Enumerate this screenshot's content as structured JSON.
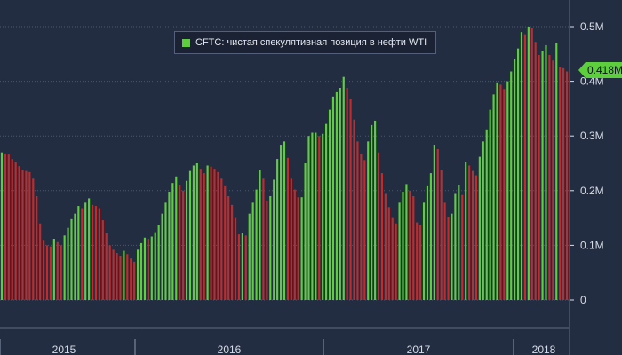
{
  "legend": {
    "label": "CFTC: чистая спекулятивная позиция в нефти WTI"
  },
  "last_value_tag": "0.418M",
  "colors": {
    "background": "#222d41",
    "rising": "#5ecf3c",
    "falling": "#c42a2a",
    "grid": "#4a566c",
    "axis_text": "#d8dde6"
  },
  "chart_data": {
    "type": "bar",
    "title": "",
    "xlabel": "",
    "ylabel": "",
    "ylim": [
      0,
      540000
    ],
    "yticks": [
      0,
      100000,
      200000,
      300000,
      400000,
      500000
    ],
    "ytick_labels": [
      "0",
      "0.1M",
      "0.2M",
      "0.3M",
      "0.4M",
      "0.5M"
    ],
    "x_period_labels": [
      "2015",
      "2016",
      "2017",
      "2018"
    ],
    "grid": true,
    "legend_position": "top-center",
    "bar_color_rule": "green if value rose vs previous week, red if fell",
    "series": [
      {
        "name": "CFTC: чистая спекулятивная позиция в нефти WTI",
        "values": [
          270000,
          268000,
          266000,
          258000,
          252000,
          245000,
          238000,
          236000,
          234000,
          222000,
          190000,
          140000,
          110000,
          100000,
          98000,
          112000,
          106000,
          100000,
          118000,
          132000,
          148000,
          158000,
          172000,
          168000,
          178000,
          186000,
          174000,
          172000,
          168000,
          146000,
          122000,
          100000,
          92000,
          86000,
          80000,
          90000,
          84000,
          76000,
          70000,
          92000,
          104000,
          114000,
          112000,
          116000,
          124000,
          138000,
          158000,
          178000,
          198000,
          214000,
          226000,
          210000,
          200000,
          218000,
          236000,
          246000,
          250000,
          240000,
          232000,
          246000,
          244000,
          240000,
          234000,
          222000,
          208000,
          190000,
          174000,
          150000,
          120000,
          122000,
          118000,
          158000,
          178000,
          202000,
          238000,
          222000,
          182000,
          190000,
          220000,
          258000,
          284000,
          290000,
          260000,
          222000,
          202000,
          188000,
          188000,
          250000,
          300000,
          306000,
          306000,
          300000,
          304000,
          322000,
          348000,
          372000,
          380000,
          388000,
          408000,
          388000,
          368000,
          330000,
          290000,
          268000,
          256000,
          290000,
          320000,
          328000,
          270000,
          232000,
          194000,
          170000,
          150000,
          140000,
          178000,
          198000,
          212000,
          200000,
          190000,
          142000,
          138000,
          178000,
          208000,
          232000,
          284000,
          276000,
          238000,
          178000,
          152000,
          158000,
          194000,
          210000,
          192000,
          252000,
          246000,
          236000,
          228000,
          262000,
          290000,
          312000,
          348000,
          376000,
          398000,
          394000,
          386000,
          400000,
          418000,
          440000,
          460000,
          490000,
          486000,
          500000,
          498000,
          472000,
          448000,
          456000,
          466000,
          448000,
          438000,
          470000,
          426000,
          424000,
          418000
        ]
      }
    ]
  }
}
